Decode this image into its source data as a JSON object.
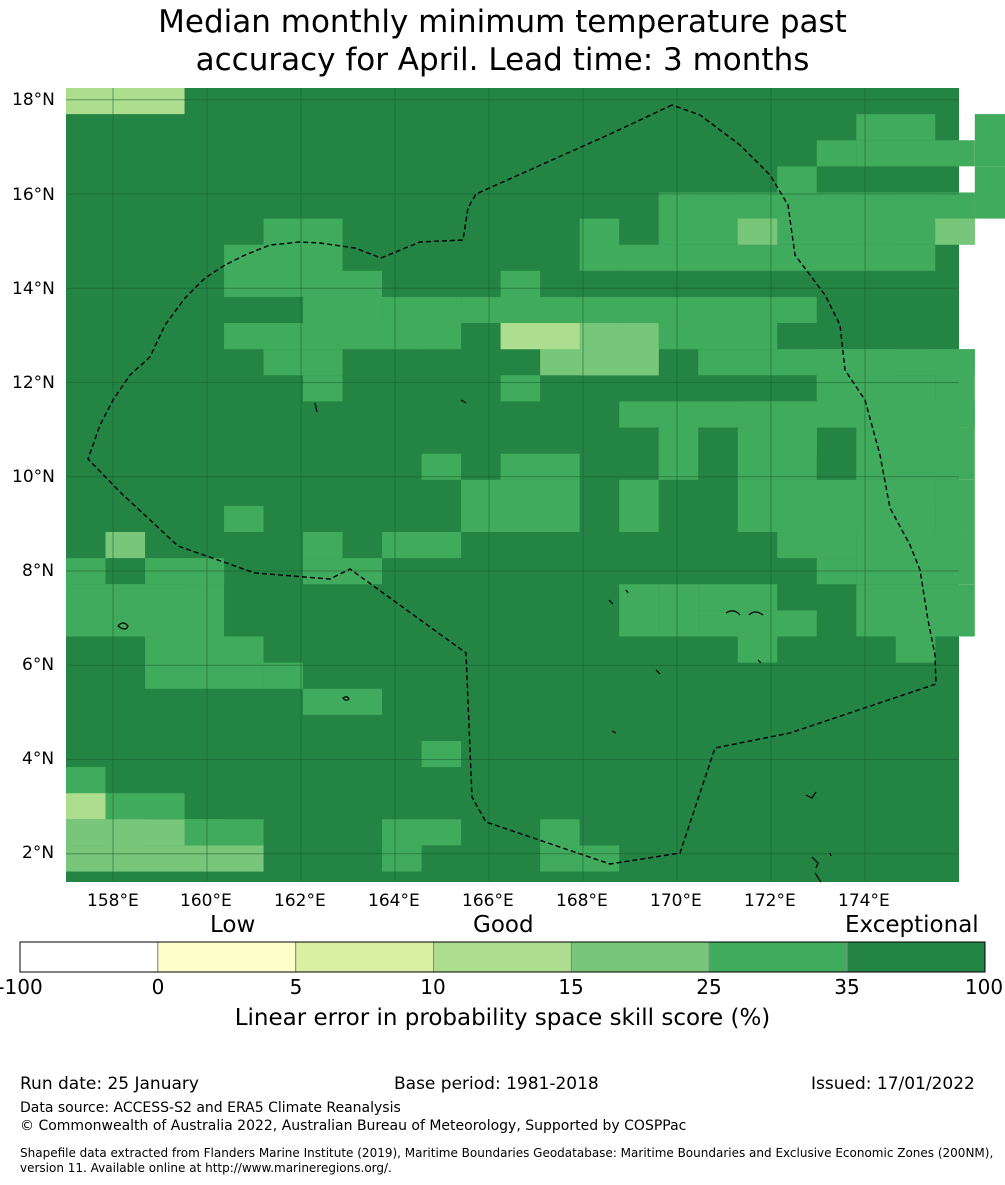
{
  "title_line1": "Median monthly minimum temperature past",
  "title_line2": "accuracy for April. Lead time: 3 months",
  "map": {
    "lon_ticks": [
      "158°E",
      "160°E",
      "162°E",
      "164°E",
      "166°E",
      "168°E",
      "170°E",
      "172°E",
      "174°E"
    ],
    "lat_ticks": [
      "18°N",
      "16°N",
      "14°N",
      "12°N",
      "10°N",
      "8°N",
      "6°N",
      "4°N",
      "2°N"
    ],
    "lon_min": 157.0,
    "lon_max": 176.0,
    "lat_min": 1.4,
    "lat_max": 18.25,
    "boundary_style": "dashed black line",
    "grid": "on"
  },
  "colorbar": {
    "categories": [
      "Low",
      "Good",
      "Exceptional"
    ],
    "ticks": [
      "-100",
      "0",
      "5",
      "10",
      "15",
      "25",
      "35",
      "100"
    ],
    "colors": [
      "#ffffff",
      "#ffffcc",
      "#d9f0a3",
      "#addd8e",
      "#78c679",
      "#41ab5d",
      "#238443"
    ],
    "title": "Linear error in probability space skill score (%)"
  },
  "footer": {
    "run_date": "Run date: 25 January",
    "base_period": "Base period: 1981-2018",
    "issued": "Issued: 17/01/2022",
    "data_source": "Data source: ACCESS-S2 and ERA5 Climate Reanalysis",
    "copyright": "© Commonwealth of Australia 2022, Australian Bureau of Meteorology, Supported by COSPPac",
    "shapefile_1": "Shapefile data extracted from Flanders Marine Institute (2019), Maritime Boundaries Geodatabase: Maritime Boundaries and Exclusive Economic Zones (200NM),",
    "shapefile_2": "version 11. Available online at http://www.marineregions.org/."
  }
}
